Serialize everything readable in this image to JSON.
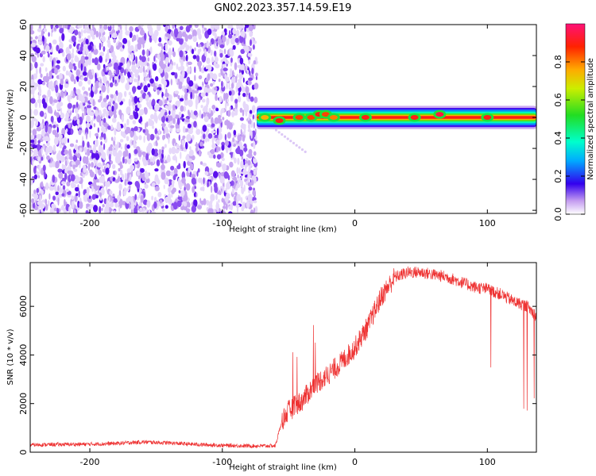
{
  "title": "GN02.2023.357.14.59.E19",
  "chart_data": [
    {
      "type": "heatmap",
      "xlabel": "Height of straight line (km)",
      "ylabel": "Frequency (Hz)",
      "xlim": [
        -245,
        137
      ],
      "ylim": [
        -62,
        60
      ],
      "xticks": [
        -200,
        -100,
        0,
        100
      ],
      "yticks": [
        60,
        40,
        20,
        0,
        -20,
        -40,
        -60
      ],
      "colorbar": {
        "label": "Normalized spectral amplitude",
        "range": [
          0,
          1
        ],
        "ticks": [
          0.0,
          0.2,
          0.4,
          0.6,
          0.8
        ]
      },
      "regions": [
        {
          "x_range": [
            -245,
            -74
          ],
          "y_range": [
            -62,
            60
          ],
          "amplitude": "low (0.0-0.15), noise"
        },
        {
          "x_range": [
            -74,
            137
          ],
          "y_range": [
            -3,
            3
          ],
          "amplitude": "high (~1.0), narrow band near 0 Hz"
        }
      ],
      "peaks": [
        {
          "x": -68,
          "y": 0,
          "amplitude": 0.75
        },
        {
          "x": -57,
          "y": -2,
          "amplitude": 0.9
        },
        {
          "x": -42,
          "y": 0,
          "amplitude": 0.85
        },
        {
          "x": -33,
          "y": 0,
          "amplitude": 0.85
        },
        {
          "x": -27,
          "y": 2,
          "amplitude": 0.9
        },
        {
          "x": -22,
          "y": 2,
          "amplitude": 0.85
        },
        {
          "x": -16,
          "y": 0,
          "amplitude": 0.8
        },
        {
          "x": 8,
          "y": 0,
          "amplitude": 0.9
        },
        {
          "x": 45,
          "y": 0,
          "amplitude": 0.9
        },
        {
          "x": 64,
          "y": 2,
          "amplitude": 0.95
        },
        {
          "x": 100,
          "y": 0,
          "amplitude": 0.9
        }
      ]
    },
    {
      "type": "line",
      "xlabel": "Height of straight line (km)",
      "ylabel": "SNR (10 * v/v)",
      "xlim": [
        -245,
        137
      ],
      "ylim": [
        0,
        7800
      ],
      "xticks": [
        -200,
        -100,
        0,
        100
      ],
      "yticks": [
        0,
        2000,
        4000,
        6000
      ],
      "color": "#ee3333",
      "series": [
        {
          "x": [
            -245,
            -220,
            -200,
            -180,
            -160,
            -140,
            -120,
            -100,
            -80,
            -60,
            -55,
            -50,
            -40,
            -30,
            -20,
            -10,
            0,
            10,
            20,
            30,
            40,
            50,
            60,
            70,
            80,
            90,
            100,
            110,
            120,
            130,
            137
          ],
          "values": [
            300,
            320,
            330,
            360,
            420,
            380,
            320,
            280,
            260,
            260,
            1300,
            1700,
            2100,
            2800,
            3200,
            3700,
            4300,
            5200,
            6400,
            7200,
            7400,
            7400,
            7300,
            7200,
            7000,
            6800,
            6700,
            6500,
            6200,
            6000,
            5600
          ]
        }
      ]
    }
  ]
}
